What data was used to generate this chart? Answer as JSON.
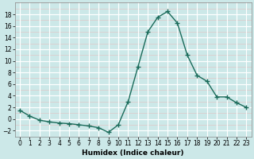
{
  "x": [
    0,
    1,
    2,
    3,
    4,
    5,
    6,
    7,
    8,
    9,
    10,
    11,
    12,
    13,
    14,
    15,
    16,
    17,
    18,
    19,
    20,
    21,
    22,
    23
  ],
  "y": [
    1.5,
    0.5,
    -0.2,
    -0.5,
    -0.7,
    -0.8,
    -1.0,
    -1.2,
    -1.5,
    -2.3,
    -1.0,
    3.0,
    9.0,
    15.0,
    17.5,
    18.5,
    16.5,
    11.0,
    7.5,
    6.5,
    3.8,
    3.8,
    2.8,
    2.0
  ],
  "line_color": "#1a6b5a",
  "marker": "+",
  "markersize": 4,
  "markeredgewidth": 1.0,
  "linewidth": 1.0,
  "bg_color": "#cce8e8",
  "grid_color": "#ffffff",
  "grid_minor_color": "#e8d8d8",
  "xlabel": "Humidex (Indice chaleur)",
  "ylim": [
    -3,
    20
  ],
  "xlim": [
    -0.5,
    23.5
  ],
  "yticks": [
    -2,
    0,
    2,
    4,
    6,
    8,
    10,
    12,
    14,
    16,
    18
  ],
  "xticks": [
    0,
    1,
    2,
    3,
    4,
    5,
    6,
    7,
    8,
    9,
    10,
    11,
    12,
    13,
    14,
    15,
    16,
    17,
    18,
    19,
    20,
    21,
    22,
    23
  ],
  "xlabel_fontsize": 6.5,
  "tick_fontsize": 5.5
}
